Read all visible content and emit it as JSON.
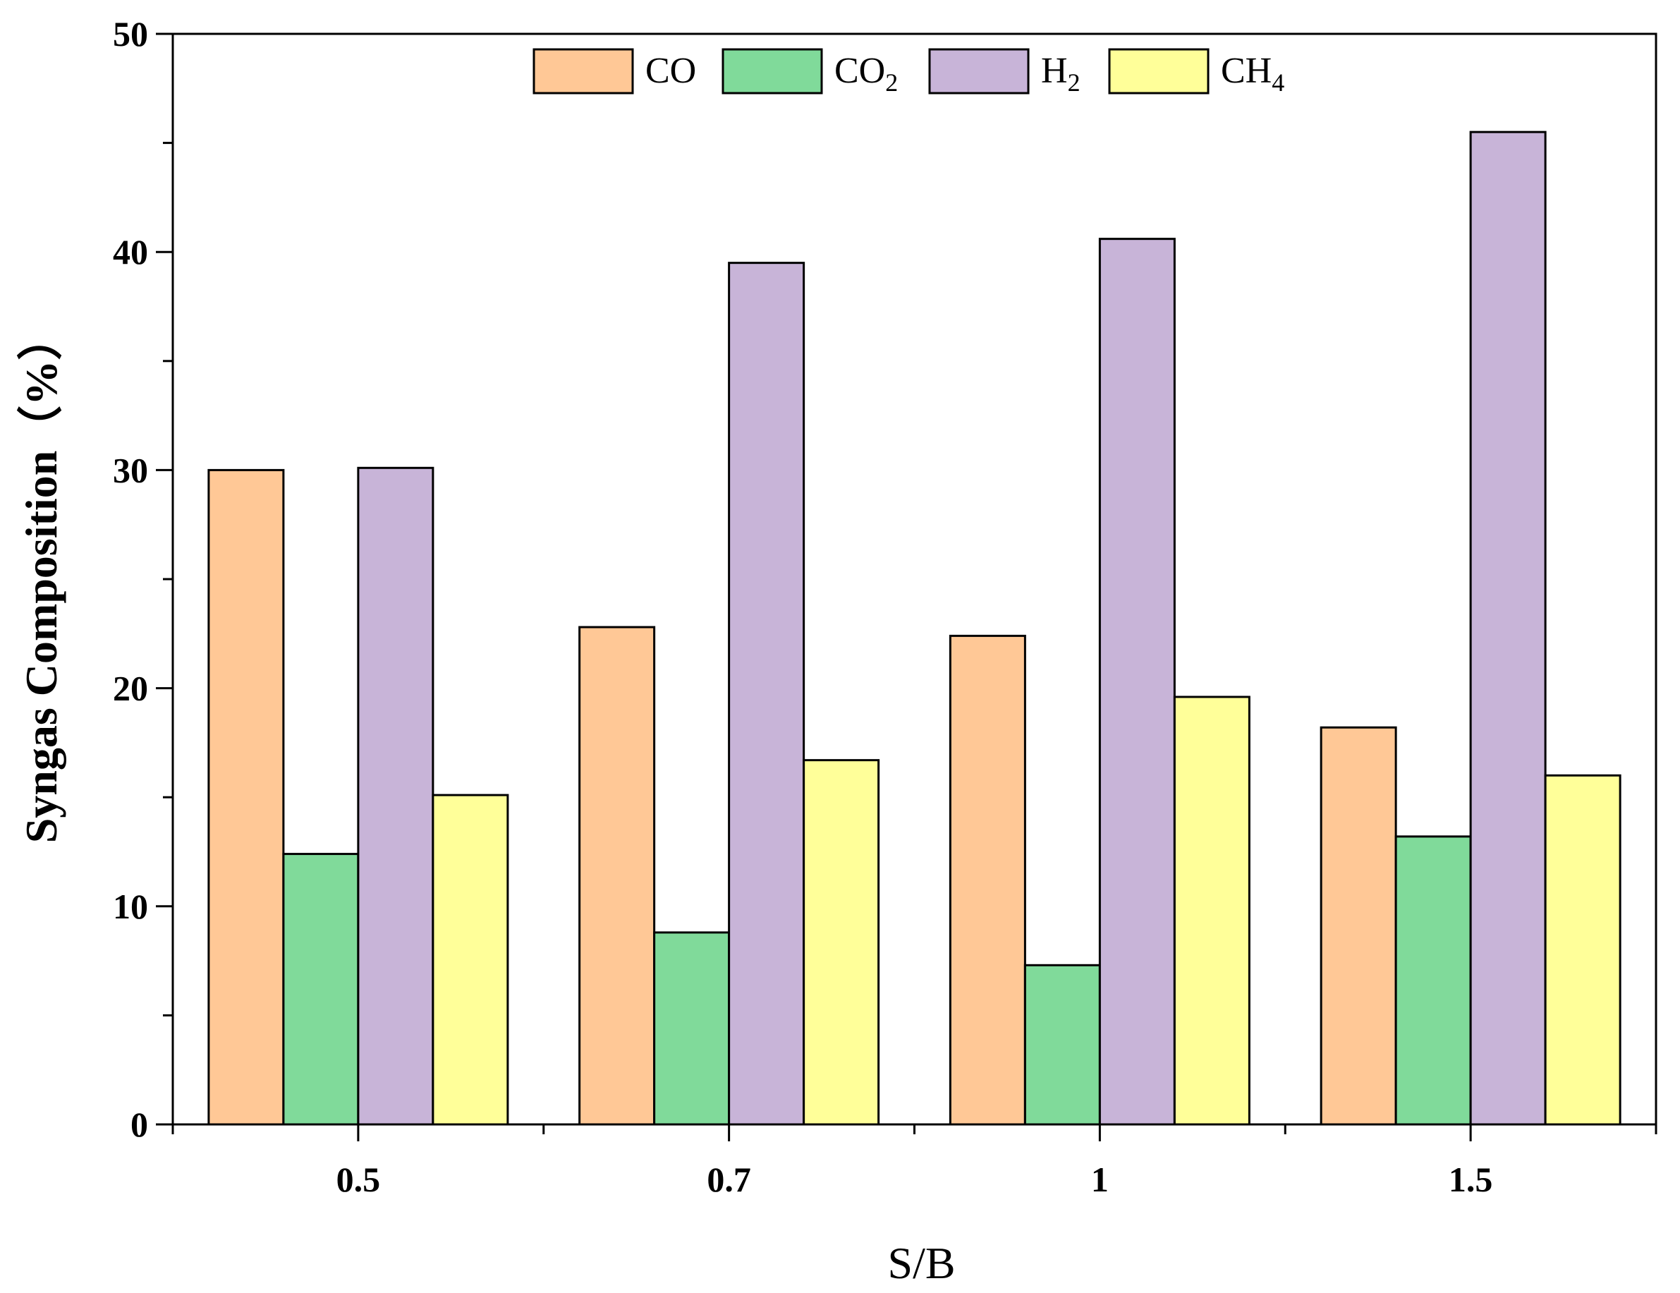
{
  "chart_data": {
    "type": "bar",
    "title": "",
    "xlabel": "S/B",
    "ylabel": "Syngas Composition（%）",
    "categories": [
      "0.5",
      "0.7",
      "1",
      "1.5"
    ],
    "series": [
      {
        "name": "CO",
        "sub": "",
        "color": "#FFC896",
        "values": [
          30.0,
          22.8,
          22.4,
          18.2
        ]
      },
      {
        "name": "CO",
        "sub": "2",
        "color": "#80DA9A",
        "values": [
          12.4,
          8.8,
          7.3,
          13.2
        ]
      },
      {
        "name": "H",
        "sub": "2",
        "color": "#C8B4D8",
        "values": [
          30.1,
          39.5,
          40.6,
          45.5
        ]
      },
      {
        "name": "CH",
        "sub": "4",
        "color": "#FFFF99",
        "values": [
          15.1,
          16.7,
          19.6,
          16.0
        ]
      }
    ],
    "ylim": [
      0,
      50
    ],
    "yticks": [
      0,
      10,
      20,
      30,
      40,
      50
    ],
    "legend": "top-center",
    "grid": false
  }
}
